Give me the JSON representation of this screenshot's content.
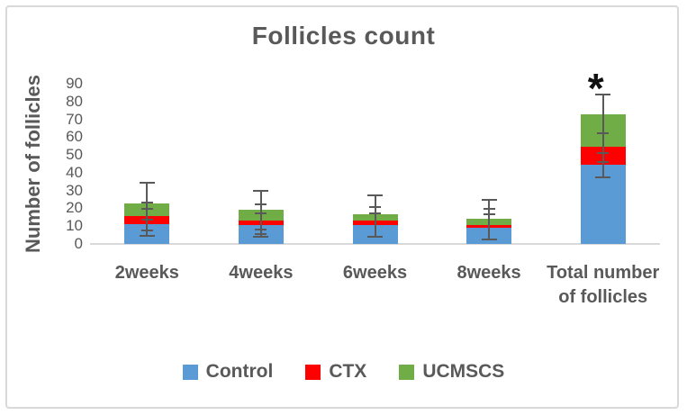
{
  "figure": {
    "background": "#ffffff",
    "frame_border_color": "#d9d9d9"
  },
  "chart_data": {
    "type": "bar",
    "stacked": true,
    "title": "Follicles count",
    "ylabel": "Number of follicles",
    "xlabel": "",
    "ylim": [
      0,
      90
    ],
    "yticks": [
      0,
      10,
      20,
      30,
      40,
      50,
      60,
      70,
      80,
      90
    ],
    "grid": false,
    "categories": [
      "2weeks",
      "4weeks",
      "6weeks",
      "8weeks",
      "Total number of follicles"
    ],
    "series": [
      {
        "name": "Control",
        "color": "#5b9bd5",
        "values": [
          11,
          10.5,
          10.5,
          9,
          44.5
        ]
      },
      {
        "name": "CTX",
        "color": "#ff0000",
        "values": [
          4.5,
          2.5,
          2.5,
          1.5,
          10
        ]
      },
      {
        "name": "UCMSCS",
        "color": "#70ad47",
        "values": [
          7.5,
          6,
          3.5,
          3.5,
          18.5
        ]
      }
    ],
    "stacked_totals": [
      23,
      19,
      16.5,
      14,
      73
    ],
    "error_bars": [
      {
        "category": "2weeks",
        "min": 4.5,
        "max": 34.5,
        "caps": [
          4.5,
          7.5,
          13.5,
          19.5,
          23.5,
          34.5
        ]
      },
      {
        "category": "4weeks",
        "min": 4,
        "max": 30,
        "caps": [
          4,
          5.5,
          8,
          17,
          22,
          30
        ]
      },
      {
        "category": "6weeks",
        "min": 4,
        "max": 27.5,
        "caps": [
          4,
          17,
          20.5,
          27.5
        ]
      },
      {
        "category": "8weeks",
        "min": 2.5,
        "max": 25,
        "caps": [
          2.5,
          16.5,
          19.5,
          25
        ]
      },
      {
        "category": "Total number of follicles",
        "min": 37.5,
        "max": 84,
        "caps": [
          37.5,
          46,
          51,
          62,
          84
        ]
      }
    ],
    "annotations": [
      {
        "text": "*",
        "category_index": 4,
        "y": 92,
        "meaning": "significance-marker"
      }
    ],
    "legend": {
      "position": "bottom",
      "entries": [
        {
          "label": "Control",
          "color": "#5b9bd5"
        },
        {
          "label": "CTX",
          "color": "#ff0000"
        },
        {
          "label": "UCMSCS",
          "color": "#70ad47"
        }
      ]
    },
    "colors": {
      "text": "#595959",
      "axis_line": "#d9d9d9",
      "error_bar": "#595959",
      "annotation": "#111111"
    }
  }
}
